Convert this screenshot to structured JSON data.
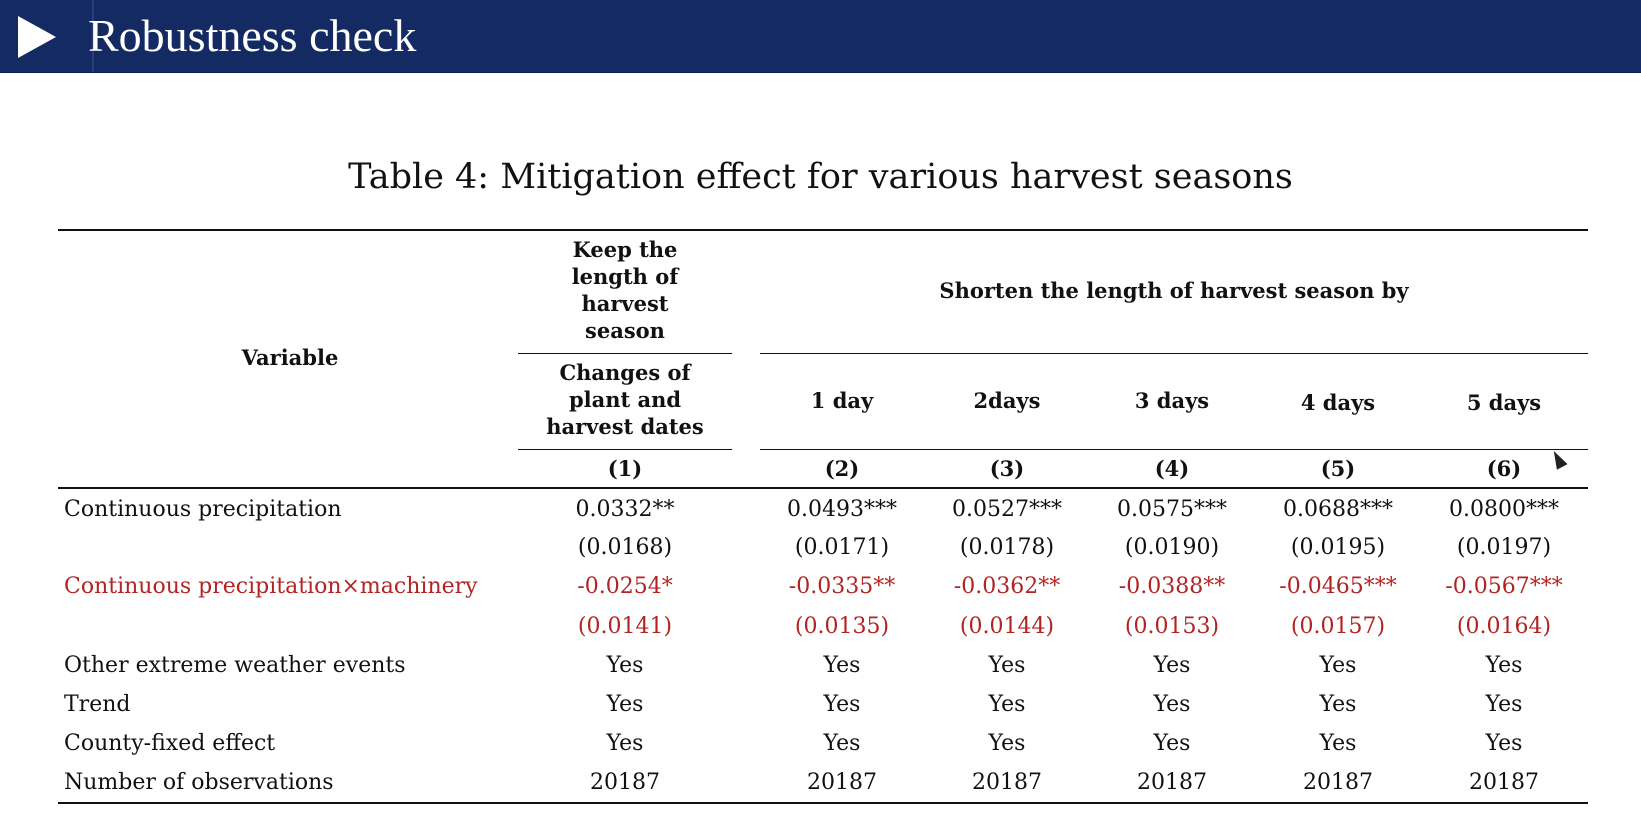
{
  "slide": {
    "title": "Robustness check"
  },
  "table": {
    "caption": "Table 4: Mitigation effect for various harvest seasons",
    "headers": {
      "variable": "Variable",
      "keep_group": "Keep the length of harvest season",
      "shorten_group": "Shorten the length of harvest season by",
      "sub": [
        "Changes of plant and harvest dates",
        "1 day",
        "2days",
        "3 days",
        "4 days",
        "5 days"
      ],
      "numbers": [
        "(1)",
        "(2)",
        "(3)",
        "(4)",
        "(5)",
        "(6)"
      ]
    },
    "rows": [
      {
        "label": "Continuous precipitation",
        "values": [
          "0.0332**",
          "0.0493***",
          "0.0527***",
          "0.0575***",
          "0.0688***",
          "0.0800***"
        ],
        "highlight": false
      },
      {
        "label": "",
        "values": [
          "(0.0168)",
          "(0.0171)",
          "(0.0178)",
          "(0.0190)",
          "(0.0195)",
          "(0.0197)"
        ],
        "highlight": false
      },
      {
        "label": "Continuous precipitation×machinery",
        "values": [
          "-0.0254*",
          "-0.0335**",
          "-0.0362**",
          "-0.0388**",
          "-0.0465***",
          "-0.0567***"
        ],
        "highlight": true
      },
      {
        "label": "",
        "values": [
          "(0.0141)",
          "(0.0135)",
          "(0.0144)",
          "(0.0153)",
          "(0.0157)",
          "(0.0164)"
        ],
        "highlight": true
      },
      {
        "label": "Other extreme weather events",
        "values": [
          "Yes",
          "Yes",
          "Yes",
          "Yes",
          "Yes",
          "Yes"
        ],
        "highlight": false
      },
      {
        "label": "Trend",
        "values": [
          "Yes",
          "Yes",
          "Yes",
          "Yes",
          "Yes",
          "Yes"
        ],
        "highlight": false
      },
      {
        "label": "County-fixed effect",
        "values": [
          "Yes",
          "Yes",
          "Yes",
          "Yes",
          "Yes",
          "Yes"
        ],
        "highlight": false
      },
      {
        "label": "Number of observations",
        "values": [
          "20187",
          "20187",
          "20187",
          "20187",
          "20187",
          "20187"
        ],
        "highlight": false
      }
    ],
    "highlight_color": "#b22424"
  }
}
